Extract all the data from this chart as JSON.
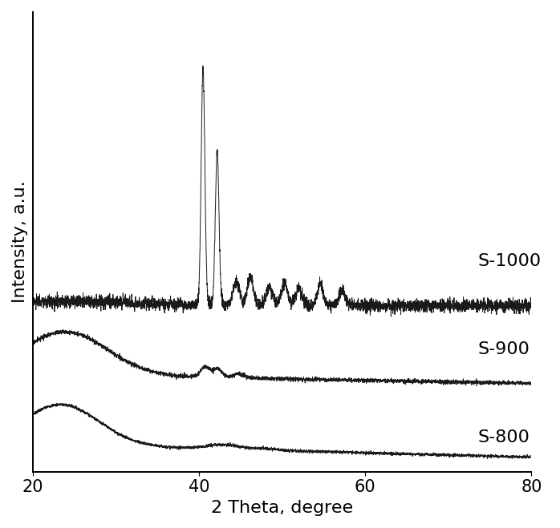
{
  "xlabel": "2 Theta, degree",
  "ylabel": "Intensity, a.u.",
  "xlim": [
    20,
    80
  ],
  "xticks": [
    20,
    40,
    60,
    80
  ],
  "labels": [
    "S-1000",
    "S-900",
    "S-800"
  ],
  "line_color": "#1a1a1a",
  "background_color": "#ffffff",
  "label_fontsize": 16,
  "tick_fontsize": 15
}
